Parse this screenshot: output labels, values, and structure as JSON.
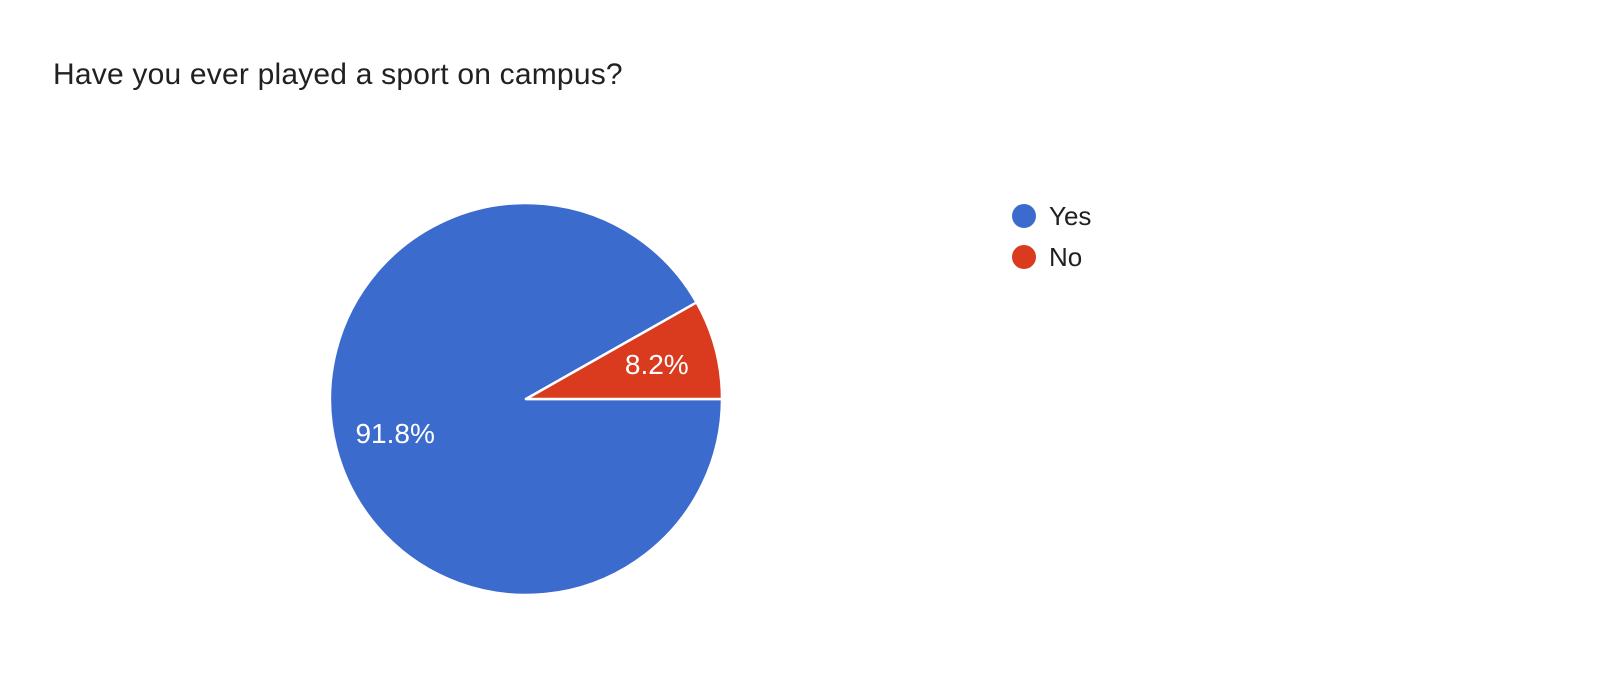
{
  "title": "Have you ever played a sport on campus?",
  "chart_data": {
    "type": "pie",
    "title": "Have you ever played a sport on campus?",
    "categories": [
      "Yes",
      "No"
    ],
    "values": [
      91.8,
      8.2
    ],
    "unit": "percent",
    "slices": [
      {
        "label": "Yes",
        "value": 91.8,
        "pct_label": "91.8%",
        "color": "#3c6bce"
      },
      {
        "label": "No",
        "value": 8.2,
        "pct_label": "8.2%",
        "color": "#da3b1e"
      }
    ],
    "start_angle_deg": 0,
    "direction": "clockwise",
    "slice_label_color": "#ffffff",
    "slice_stroke_color": "#ffffff",
    "legend_position": "right",
    "background": "#ffffff",
    "title_color": "#212121",
    "legend_text_color": "#212121"
  }
}
